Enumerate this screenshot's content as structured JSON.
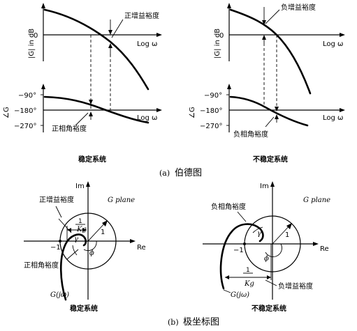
{
  "captions": {
    "part_a": "(a)",
    "part_a_text": "伯德图",
    "part_b": "(b)",
    "part_b_text": "极坐标图",
    "stable": "稳定系统",
    "unstable": "不稳定系统"
  },
  "bode_left": {
    "mag_ylabel": "|G| in dB",
    "zero": "0",
    "log_omega": "Log ω",
    "gain_margin": "正增益裕度",
    "phase_labels": [
      "−90°",
      "−180°",
      "−270°"
    ],
    "phase_ylabel": "∠G",
    "phase_margin": "正相角裕度",
    "caption": "稳定系统"
  },
  "bode_right": {
    "mag_ylabel": "|G| in dB",
    "zero": "0",
    "log_omega": "Log ω",
    "gain_margin": "负增益裕度",
    "phase_labels": [
      "−90°",
      "−180°",
      "−270°"
    ],
    "phase_ylabel": "∠G",
    "phase_margin": "负相角裕度",
    "caption": "不稳定系统"
  },
  "polar_left": {
    "im": "Im",
    "re": "Re",
    "g_plane": "G plane",
    "minus_one": "−1",
    "one": "1",
    "inv_k_num": "1",
    "inv_k_den": "Kg",
    "gamma": "γ",
    "phi": "ϕ",
    "curve_label": "G(jω)",
    "gain_margin": "正增益裕度",
    "phase_margin": "正相角裕度",
    "caption": "稳定系统"
  },
  "polar_right": {
    "im": "Im",
    "re": "Re",
    "g_plane": "G plane",
    "minus_one": "−1",
    "one": "1",
    "inv_k_num": "1",
    "inv_k_den": "Kg",
    "gamma": "γ",
    "phi": "ϕ",
    "curve_label": "G(jω)",
    "gain_margin": "负增益裕度",
    "phase_margin": "负相角裕度",
    "caption": "不稳定系统"
  }
}
